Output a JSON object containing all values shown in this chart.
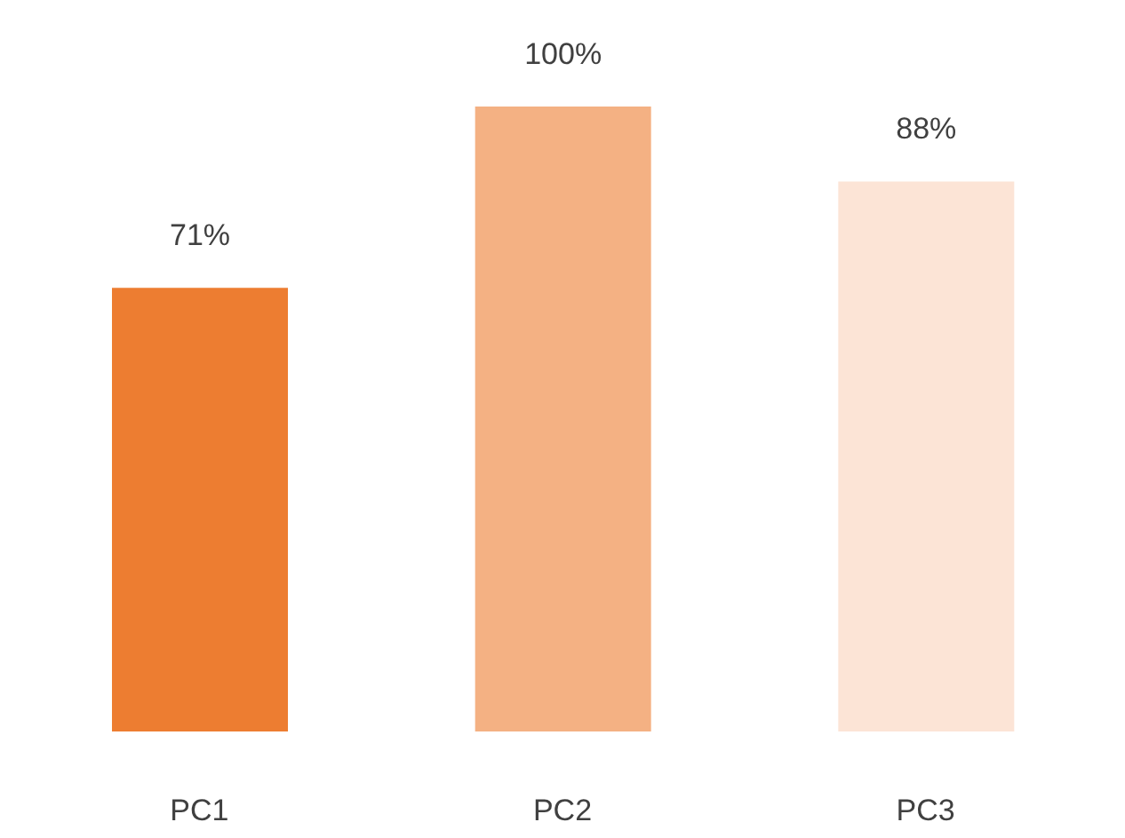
{
  "chart_data": {
    "type": "bar",
    "categories": [
      "PC1",
      "PC2",
      "PC3"
    ],
    "values": [
      71,
      100,
      88
    ],
    "colors": [
      "#ed7d31",
      "#f4b183",
      "#fce4d6"
    ],
    "value_labels": [
      "71%",
      "100%",
      "88%"
    ]
  }
}
